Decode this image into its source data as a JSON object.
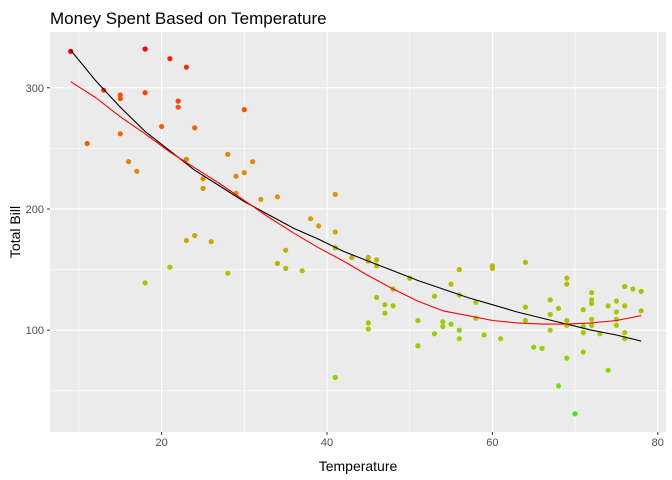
{
  "chart_data": {
    "type": "scatter",
    "title": "Money Spent Based on Temperature",
    "xlabel": "Temperature",
    "ylabel": "Total Bill",
    "xlim": [
      6.5,
      81
    ],
    "ylim": [
      16,
      346
    ],
    "xticks": [
      20,
      40,
      60,
      80
    ],
    "yticks": [
      100,
      200,
      300
    ],
    "grid": true,
    "legend": "none",
    "colors": {
      "panel_background": "#ebebeb",
      "grid_major": "#ffffff",
      "tick": "#333333",
      "smooth_black": "#000000",
      "smooth_red": "#ff0000"
    },
    "points": [
      {
        "x": 9,
        "y": 330,
        "color": "#ff0000"
      },
      {
        "x": 11,
        "y": 254,
        "color": "#f06000"
      },
      {
        "x": 13,
        "y": 298,
        "color": "#ff3300"
      },
      {
        "x": 15,
        "y": 294,
        "color": "#ff4d00"
      },
      {
        "x": 15,
        "y": 291,
        "color": "#ff4d00"
      },
      {
        "x": 15,
        "y": 262,
        "color": "#f26500"
      },
      {
        "x": 16,
        "y": 239,
        "color": "#e88000"
      },
      {
        "x": 17,
        "y": 231,
        "color": "#e38800"
      },
      {
        "x": 18,
        "y": 332,
        "color": "#ff0000"
      },
      {
        "x": 18,
        "y": 296,
        "color": "#ff4000"
      },
      {
        "x": 18,
        "y": 139,
        "color": "#b8c000"
      },
      {
        "x": 20,
        "y": 268,
        "color": "#f26000"
      },
      {
        "x": 21,
        "y": 324,
        "color": "#ff1a00"
      },
      {
        "x": 21,
        "y": 152,
        "color": "#b8c000"
      },
      {
        "x": 22,
        "y": 289,
        "color": "#ff4800"
      },
      {
        "x": 22,
        "y": 284,
        "color": "#ff5000"
      },
      {
        "x": 23,
        "y": 317,
        "color": "#ff2a00"
      },
      {
        "x": 23,
        "y": 241,
        "color": "#e68200"
      },
      {
        "x": 23,
        "y": 174,
        "color": "#c8a800"
      },
      {
        "x": 24,
        "y": 267,
        "color": "#f26200"
      },
      {
        "x": 24,
        "y": 178,
        "color": "#c6aa00"
      },
      {
        "x": 25,
        "y": 225,
        "color": "#df8c00"
      },
      {
        "x": 25,
        "y": 217,
        "color": "#da9400"
      },
      {
        "x": 26,
        "y": 173,
        "color": "#c8a800"
      },
      {
        "x": 28,
        "y": 245,
        "color": "#e58500"
      },
      {
        "x": 28,
        "y": 147,
        "color": "#b8c000"
      },
      {
        "x": 29,
        "y": 227,
        "color": "#de8d00"
      },
      {
        "x": 29,
        "y": 213,
        "color": "#d89800"
      },
      {
        "x": 30,
        "y": 282,
        "color": "#f55400"
      },
      {
        "x": 30,
        "y": 230,
        "color": "#df8c00"
      },
      {
        "x": 31,
        "y": 239,
        "color": "#e38800"
      },
      {
        "x": 32,
        "y": 208,
        "color": "#d69a00"
      },
      {
        "x": 34,
        "y": 210,
        "color": "#d69a00"
      },
      {
        "x": 34,
        "y": 155,
        "color": "#beb400"
      },
      {
        "x": 35,
        "y": 166,
        "color": "#c4ae00"
      },
      {
        "x": 35,
        "y": 151,
        "color": "#bcb800"
      },
      {
        "x": 37,
        "y": 149,
        "color": "#bcb800"
      },
      {
        "x": 38,
        "y": 192,
        "color": "#d0a000"
      },
      {
        "x": 39,
        "y": 186,
        "color": "#cca400"
      },
      {
        "x": 41,
        "y": 212,
        "color": "#d69a00"
      },
      {
        "x": 41,
        "y": 181,
        "color": "#caa600"
      },
      {
        "x": 41,
        "y": 168,
        "color": "#c4ae00"
      },
      {
        "x": 41,
        "y": 61,
        "color": "#80dc00"
      },
      {
        "x": 43,
        "y": 160,
        "color": "#c0b200"
      },
      {
        "x": 45,
        "y": 160,
        "color": "#bfb300"
      },
      {
        "x": 45,
        "y": 157,
        "color": "#bfb300"
      },
      {
        "x": 45,
        "y": 106,
        "color": "#a0cc00"
      },
      {
        "x": 45,
        "y": 101,
        "color": "#9cce00"
      },
      {
        "x": 46,
        "y": 158,
        "color": "#bfb300"
      },
      {
        "x": 46,
        "y": 153,
        "color": "#bcb700"
      },
      {
        "x": 46,
        "y": 127,
        "color": "#aec200"
      },
      {
        "x": 47,
        "y": 121,
        "color": "#aac400"
      },
      {
        "x": 47,
        "y": 114,
        "color": "#a6c800"
      },
      {
        "x": 48,
        "y": 134,
        "color": "#b2be00"
      },
      {
        "x": 48,
        "y": 120,
        "color": "#aac400"
      },
      {
        "x": 50,
        "y": 143,
        "color": "#b8ba00"
      },
      {
        "x": 51,
        "y": 108,
        "color": "#a2ca00"
      },
      {
        "x": 51,
        "y": 87,
        "color": "#92d400"
      },
      {
        "x": 53,
        "y": 128,
        "color": "#aec200"
      },
      {
        "x": 53,
        "y": 97,
        "color": "#98d000"
      },
      {
        "x": 54,
        "y": 107,
        "color": "#a0cc00"
      },
      {
        "x": 54,
        "y": 103,
        "color": "#9ece00"
      },
      {
        "x": 55,
        "y": 138,
        "color": "#b6bc00"
      },
      {
        "x": 55,
        "y": 105,
        "color": "#a0cc00"
      },
      {
        "x": 56,
        "y": 150,
        "color": "#bcb800"
      },
      {
        "x": 56,
        "y": 129,
        "color": "#aec200"
      },
      {
        "x": 56,
        "y": 100,
        "color": "#9ace00"
      },
      {
        "x": 56,
        "y": 93,
        "color": "#96d200"
      },
      {
        "x": 58,
        "y": 123,
        "color": "#aac400"
      },
      {
        "x": 58,
        "y": 110,
        "color": "#a4ca00"
      },
      {
        "x": 59,
        "y": 96,
        "color": "#98d000"
      },
      {
        "x": 60,
        "y": 153,
        "color": "#bcb700"
      },
      {
        "x": 60,
        "y": 151,
        "color": "#bcb800"
      },
      {
        "x": 61,
        "y": 93,
        "color": "#96d200"
      },
      {
        "x": 64,
        "y": 156,
        "color": "#bdb600"
      },
      {
        "x": 64,
        "y": 119,
        "color": "#a8c600"
      },
      {
        "x": 64,
        "y": 108,
        "color": "#a2ca00"
      },
      {
        "x": 65,
        "y": 86,
        "color": "#92d400"
      },
      {
        "x": 66,
        "y": 85,
        "color": "#92d400"
      },
      {
        "x": 67,
        "y": 125,
        "color": "#acc300"
      },
      {
        "x": 67,
        "y": 113,
        "color": "#a6c800"
      },
      {
        "x": 67,
        "y": 100,
        "color": "#9ace00"
      },
      {
        "x": 68,
        "y": 118,
        "color": "#a8c600"
      },
      {
        "x": 68,
        "y": 54,
        "color": "#74e000"
      },
      {
        "x": 69,
        "y": 143,
        "color": "#b8ba00"
      },
      {
        "x": 69,
        "y": 138,
        "color": "#b6bc00"
      },
      {
        "x": 69,
        "y": 108,
        "color": "#a2ca00"
      },
      {
        "x": 69,
        "y": 104,
        "color": "#9ecc00"
      },
      {
        "x": 69,
        "y": 77,
        "color": "#88d800"
      },
      {
        "x": 70,
        "y": 31,
        "color": "#33ee00"
      },
      {
        "x": 71,
        "y": 117,
        "color": "#a8c600"
      },
      {
        "x": 71,
        "y": 103,
        "color": "#9ece00"
      },
      {
        "x": 71,
        "y": 98,
        "color": "#9ace00"
      },
      {
        "x": 71,
        "y": 82,
        "color": "#8ed600"
      },
      {
        "x": 72,
        "y": 131,
        "color": "#b0c000"
      },
      {
        "x": 72,
        "y": 125,
        "color": "#acc300"
      },
      {
        "x": 72,
        "y": 122,
        "color": "#aac400"
      },
      {
        "x": 72,
        "y": 109,
        "color": "#a2ca00"
      },
      {
        "x": 72,
        "y": 104,
        "color": "#9ecc00"
      },
      {
        "x": 73,
        "y": 97,
        "color": "#98d000"
      },
      {
        "x": 74,
        "y": 120,
        "color": "#aac400"
      },
      {
        "x": 74,
        "y": 67,
        "color": "#82da00"
      },
      {
        "x": 75,
        "y": 124,
        "color": "#acc300"
      },
      {
        "x": 75,
        "y": 115,
        "color": "#a6c800"
      },
      {
        "x": 75,
        "y": 109,
        "color": "#a2ca00"
      },
      {
        "x": 75,
        "y": 104,
        "color": "#9ecc00"
      },
      {
        "x": 76,
        "y": 136,
        "color": "#b4bd00"
      },
      {
        "x": 76,
        "y": 120,
        "color": "#aac400"
      },
      {
        "x": 76,
        "y": 98,
        "color": "#9ace00"
      },
      {
        "x": 76,
        "y": 93,
        "color": "#96d200"
      },
      {
        "x": 77,
        "y": 134,
        "color": "#b2be00"
      },
      {
        "x": 78,
        "y": 132,
        "color": "#b0c000"
      },
      {
        "x": 78,
        "y": 116,
        "color": "#a8c600"
      }
    ],
    "series": [
      {
        "style": "black-smooth",
        "color": "#000000",
        "x": [
          9,
          12,
          15,
          18,
          21,
          24,
          27,
          30,
          33,
          36,
          39,
          42,
          45,
          48,
          51,
          54,
          57,
          60,
          63,
          66,
          69,
          72,
          75,
          78
        ],
        "y": [
          331,
          306,
          284,
          264,
          248,
          232,
          219,
          206,
          195,
          184,
          175,
          165,
          157,
          149,
          141,
          134,
          127,
          121,
          115,
          110,
          105,
          100,
          96,
          91
        ]
      },
      {
        "style": "red-smooth",
        "color": "#ff0000",
        "x": [
          9,
          12,
          15,
          18,
          21,
          24,
          27,
          30,
          33,
          36,
          39,
          42,
          45,
          48,
          51,
          54,
          57,
          60,
          63,
          66,
          69,
          72,
          75,
          78
        ],
        "y": [
          305,
          292,
          276,
          262,
          247,
          234,
          221,
          207,
          193,
          180,
          168,
          157,
          145,
          134,
          124,
          116,
          112,
          108,
          106,
          105,
          105,
          106,
          108,
          112
        ]
      }
    ]
  }
}
